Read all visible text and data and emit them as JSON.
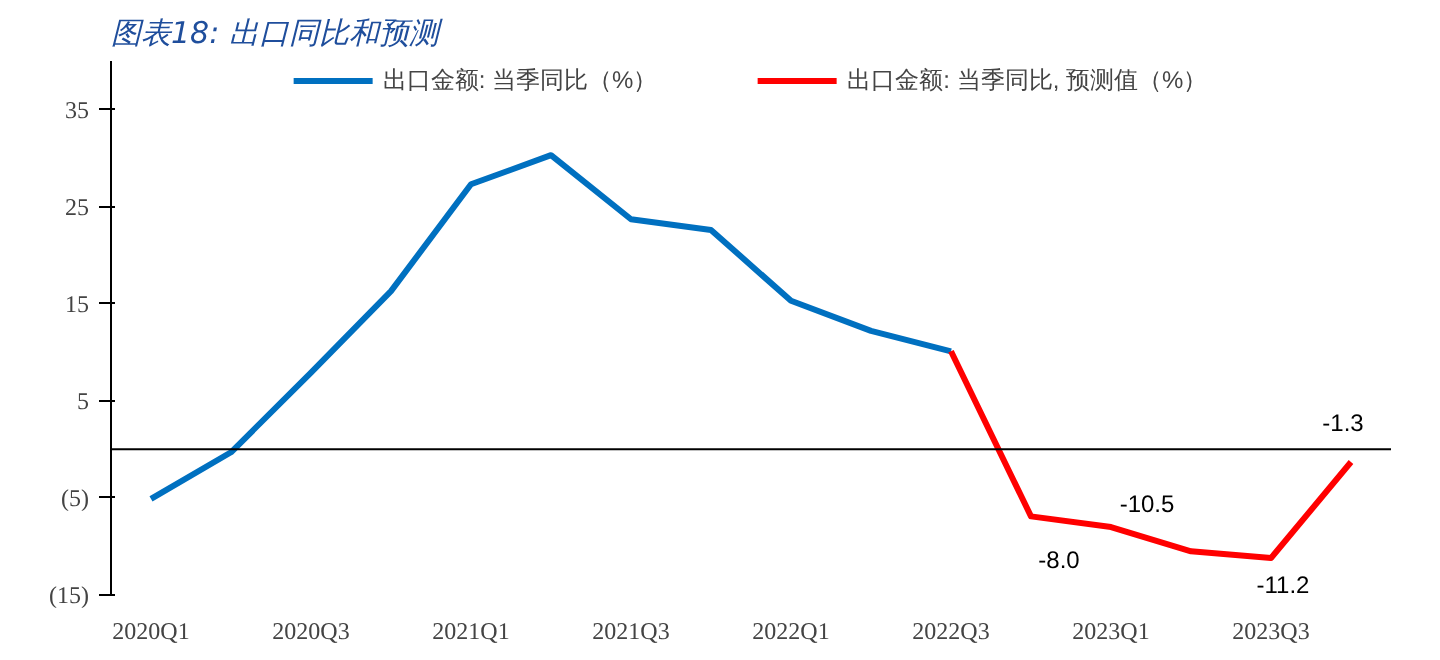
{
  "chart_data": {
    "type": "line",
    "title": "图表18:  出口同比和预测",
    "categories": [
      "2020Q1",
      null,
      "2020Q3",
      null,
      "2021Q1",
      null,
      "2021Q3",
      null,
      "2022Q1",
      null,
      "2022Q3",
      null,
      "2023Q1",
      null,
      "2023Q3",
      null
    ],
    "series": [
      {
        "name": "出口金额: 当季同比（%）",
        "color": "#0070c0",
        "values": [
          -5.1,
          -0.3,
          7.9,
          16.3,
          27.3,
          30.3,
          23.7,
          22.6,
          15.3,
          12.2,
          10.1,
          null,
          null,
          null,
          null,
          null
        ]
      },
      {
        "name": "出口金额: 当季同比, 预测值（%）",
        "color": "#ff0000",
        "values": [
          null,
          null,
          null,
          null,
          null,
          null,
          null,
          null,
          null,
          null,
          10.1,
          -6.9,
          -8.0,
          -10.5,
          -11.2,
          -1.3
        ],
        "value_labels": [
          null,
          null,
          null,
          null,
          null,
          null,
          null,
          null,
          null,
          null,
          null,
          null,
          "-8.0",
          "-10.5",
          "-11.2",
          "-1.3"
        ]
      }
    ],
    "ylim": [
      -15,
      40
    ],
    "yticks": [
      35,
      25,
      15,
      5,
      {
        "value": -5,
        "label": "(5)"
      },
      {
        "value": -15,
        "label": "(15)"
      }
    ],
    "ref_lines": [
      {
        "axis": "y",
        "value": 0,
        "color": "#000000"
      }
    ],
    "grid": false,
    "legend": "top",
    "marker": "none",
    "line_style": "solid"
  }
}
